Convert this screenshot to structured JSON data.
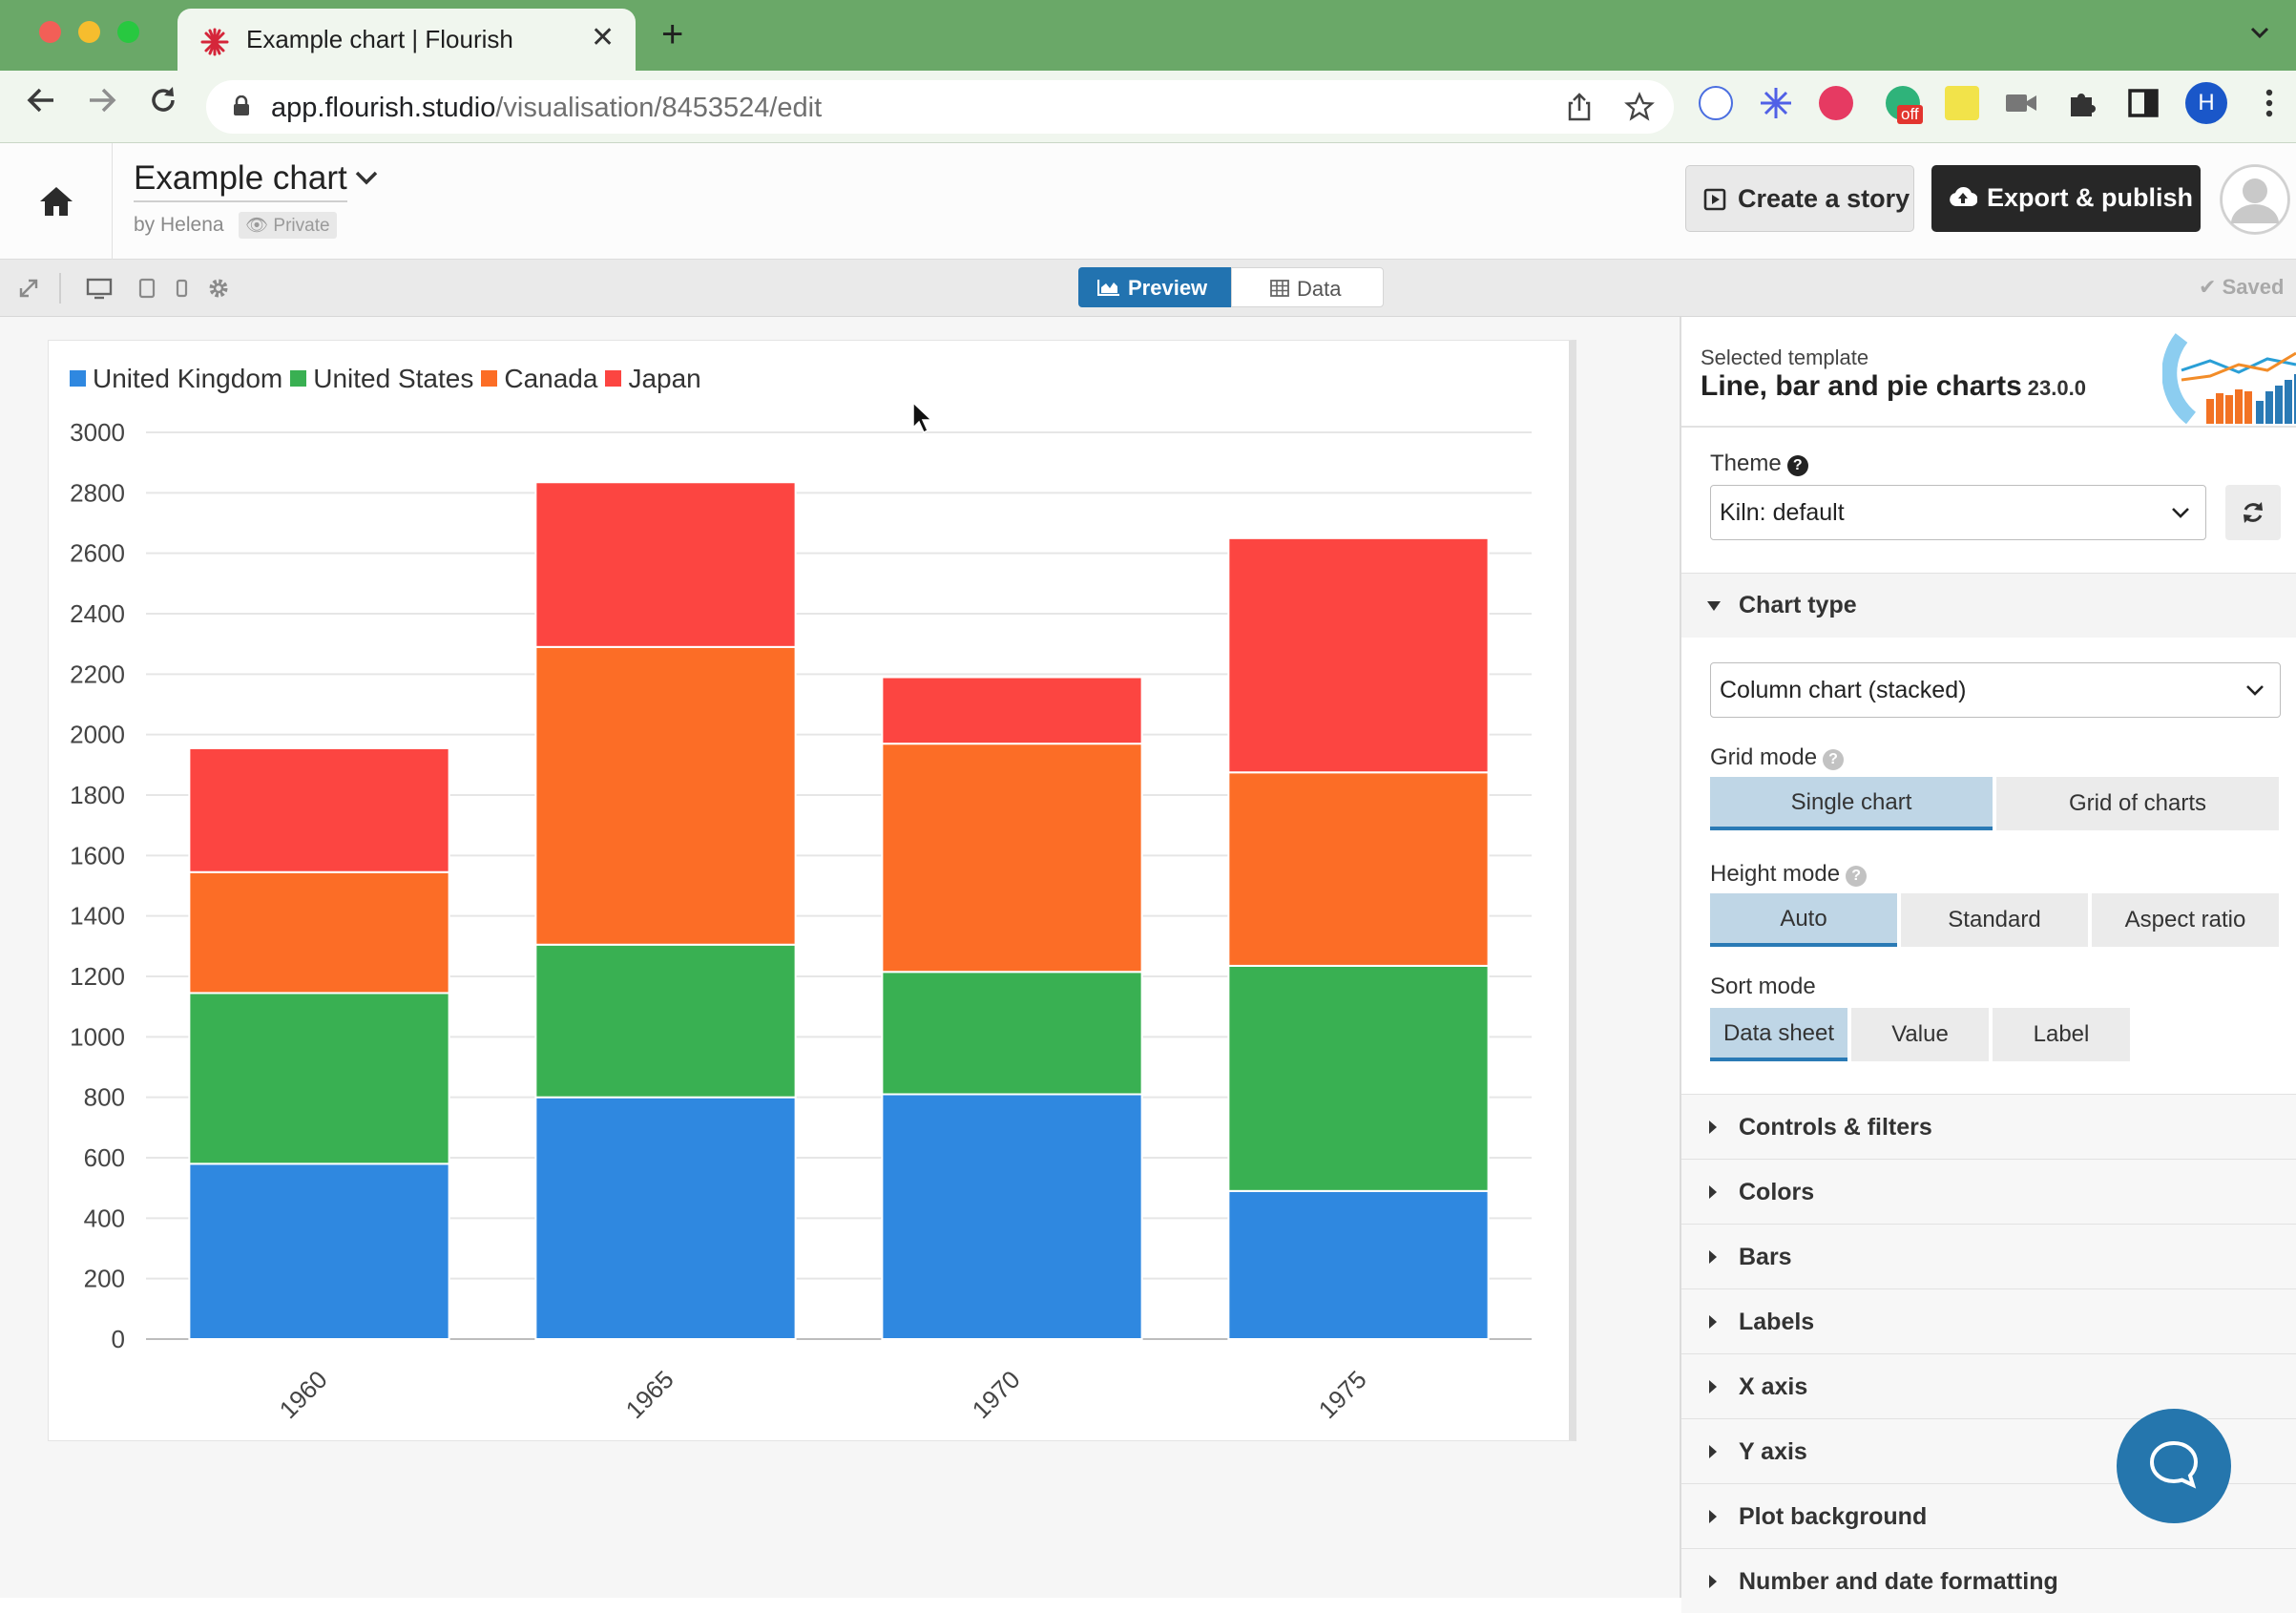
{
  "browser": {
    "tab_title": "Example chart | Flourish",
    "url_host": "app.flourish.studio",
    "url_path": "/visualisation/8453524/edit",
    "profile_initial": "H",
    "ext_badge": "off",
    "colors": {
      "frame": "#6aa868",
      "toolbar": "#f0f6ee"
    }
  },
  "header": {
    "title": "Example chart",
    "byline": "by Helena",
    "privacy": "Private",
    "create_story": "Create a story",
    "export_publish": "Export & publish"
  },
  "toolbar": {
    "preview": "Preview",
    "data": "Data",
    "saved": "Saved"
  },
  "chart_data": {
    "type": "bar",
    "stacked": true,
    "categories": [
      "1960",
      "1965",
      "1970",
      "1975"
    ],
    "series": [
      {
        "name": "United Kingdom",
        "color": "#2f88e0",
        "values": [
          580,
          800,
          810,
          490
        ]
      },
      {
        "name": "United States",
        "color": "#39b052",
        "values": [
          565,
          505,
          405,
          745
        ]
      },
      {
        "name": "Canada",
        "color": "#fc6d26",
        "values": [
          400,
          985,
          755,
          640
        ]
      },
      {
        "name": "Japan",
        "color": "#fc4541",
        "values": [
          410,
          545,
          220,
          775
        ]
      }
    ],
    "ylim": [
      0,
      3000
    ],
    "yticks": [
      "0",
      "200",
      "400",
      "600",
      "800",
      "1000",
      "1200",
      "1400",
      "1600",
      "1800",
      "2000",
      "2200",
      "2400",
      "2600",
      "2800",
      "3000"
    ],
    "grid": true,
    "legend": "top-left",
    "title": "",
    "xlabel": "",
    "ylabel": ""
  },
  "panel": {
    "template_kicker": "Selected template",
    "template_name": "Line, bar and pie charts",
    "template_version": "23.0.0",
    "theme_label": "Theme",
    "theme_value": "Kiln: default",
    "chart_type_header": "Chart type",
    "chart_type_value": "Column chart (stacked)",
    "grid_mode_label": "Grid mode",
    "grid_mode_options": [
      "Single chart",
      "Grid of charts"
    ],
    "height_mode_label": "Height mode",
    "height_mode_options": [
      "Auto",
      "Standard",
      "Aspect ratio"
    ],
    "sort_mode_label": "Sort mode",
    "sort_mode_options": [
      "Data sheet",
      "Value",
      "Label"
    ],
    "sections": [
      "Controls & filters",
      "Colors",
      "Bars",
      "Labels",
      "X axis",
      "Y axis",
      "Plot background",
      "Number and date formatting"
    ]
  }
}
